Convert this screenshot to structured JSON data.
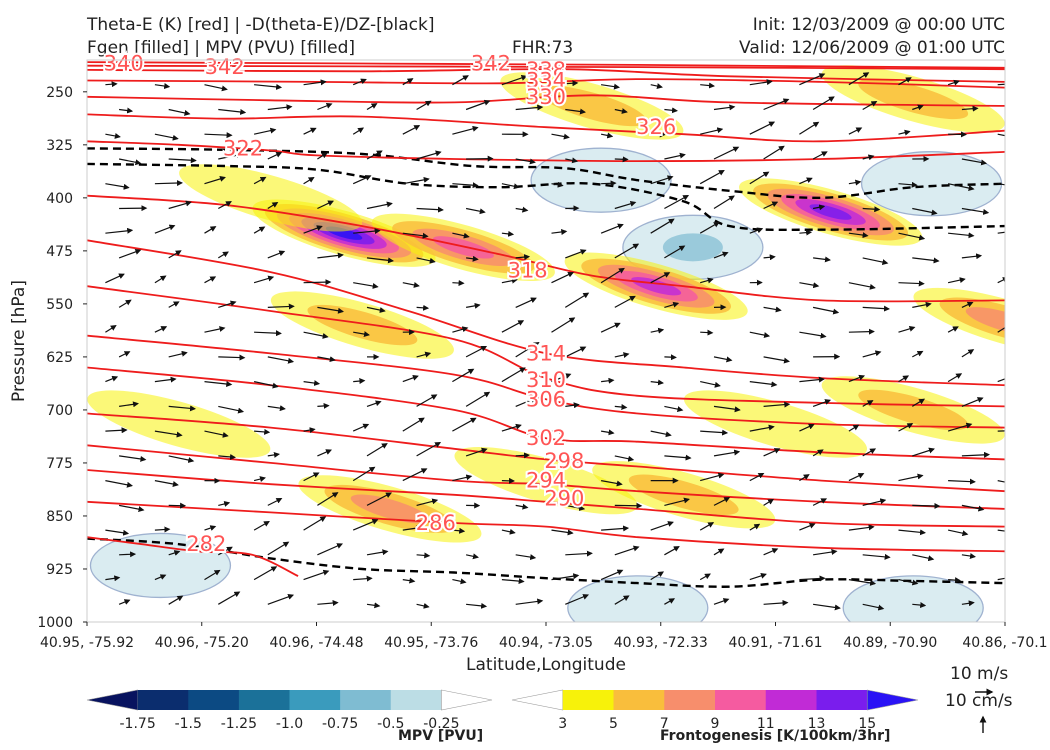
{
  "header": {
    "title_line1": "Theta-E (K) [red] | -D(theta-E)/DZ-[black]",
    "title_line2": "Fgen [filled] | MPV (PVU) [filled]",
    "fhr": "FHR:73",
    "init": "Init: 12/03/2009 @ 00:00 UTC",
    "valid": "Valid: 12/06/2009 @ 01:00 UTC"
  },
  "chart_data": {
    "type": "cross-section",
    "xlabel": "Latitude,Longitude",
    "ylabel": "Pressure [hPa]",
    "x_ticks": [
      "40.95, -75.92",
      "40.96, -75.20",
      "40.96, -74.48",
      "40.95, -73.76",
      "40.94, -73.05",
      "40.93, -72.33",
      "40.91, -71.61",
      "40.89, -70.90",
      "40.86, -70.1"
    ],
    "y_ticks": [
      250,
      325,
      400,
      475,
      550,
      625,
      700,
      775,
      850,
      925,
      1000
    ],
    "ylim": [
      205,
      1000
    ],
    "y_inverted": true,
    "theta_e_contours": [
      {
        "label": "340",
        "pts": [
          [
            0,
            208
          ],
          [
            300,
            210
          ],
          [
            600,
            212
          ],
          [
            1000,
            216
          ]
        ]
      },
      {
        "label": "342",
        "pts": [
          [
            0,
            213
          ],
          [
            300,
            214
          ],
          [
            600,
            215
          ],
          [
            1000,
            218
          ]
        ]
      },
      {
        "label": "338",
        "pts": [
          [
            0,
            219
          ],
          [
            300,
            221
          ],
          [
            520,
            218
          ],
          [
            700,
            228
          ],
          [
            1000,
            236
          ]
        ]
      },
      {
        "label": "334",
        "pts": [
          [
            0,
            234
          ],
          [
            250,
            236
          ],
          [
            450,
            238
          ],
          [
            600,
            232
          ],
          [
            800,
            236
          ],
          [
            1000,
            244
          ]
        ]
      },
      {
        "label": "330",
        "pts": [
          [
            0,
            257
          ],
          [
            200,
            262
          ],
          [
            400,
            265
          ],
          [
            550,
            255
          ],
          [
            700,
            265
          ],
          [
            1000,
            270
          ]
        ]
      },
      {
        "label": "326",
        "pts": [
          [
            0,
            282
          ],
          [
            150,
            288
          ],
          [
            300,
            285
          ],
          [
            500,
            300
          ],
          [
            650,
            310
          ],
          [
            800,
            320
          ],
          [
            1000,
            305
          ]
        ]
      },
      {
        "label": "322",
        "pts": [
          [
            0,
            320
          ],
          [
            100,
            325
          ],
          [
            200,
            333
          ],
          [
            250,
            340
          ],
          [
            400,
            345
          ],
          [
            600,
            348
          ],
          [
            800,
            345
          ],
          [
            1000,
            335
          ]
        ]
      },
      {
        "label": "318",
        "pts": [
          [
            0,
            397
          ],
          [
            150,
            410
          ],
          [
            300,
            440
          ],
          [
            450,
            480
          ],
          [
            550,
            510
          ],
          [
            650,
            525
          ],
          [
            800,
            545
          ],
          [
            1000,
            545
          ]
        ]
      },
      {
        "label": "314",
        "pts": [
          [
            0,
            460
          ],
          [
            200,
            505
          ],
          [
            350,
            560
          ],
          [
            500,
            620
          ],
          [
            650,
            640
          ],
          [
            800,
            655
          ],
          [
            1000,
            665
          ]
        ]
      },
      {
        "label": "310",
        "pts": [
          [
            0,
            525
          ],
          [
            200,
            560
          ],
          [
            400,
            600
          ],
          [
            500,
            655
          ],
          [
            600,
            680
          ],
          [
            800,
            690
          ],
          [
            1000,
            695
          ]
        ]
      },
      {
        "label": "306",
        "pts": [
          [
            0,
            595
          ],
          [
            200,
            620
          ],
          [
            400,
            650
          ],
          [
            500,
            685
          ],
          [
            600,
            705
          ],
          [
            800,
            720
          ],
          [
            1000,
            725
          ]
        ]
      },
      {
        "label": "302",
        "pts": [
          [
            0,
            640
          ],
          [
            200,
            665
          ],
          [
            400,
            700
          ],
          [
            500,
            740
          ],
          [
            600,
            745
          ],
          [
            800,
            760
          ],
          [
            1000,
            770
          ]
        ]
      },
      {
        "label": "298",
        "pts": [
          [
            0,
            705
          ],
          [
            200,
            725
          ],
          [
            400,
            755
          ],
          [
            500,
            770
          ],
          [
            600,
            780
          ],
          [
            800,
            800
          ],
          [
            1000,
            815
          ]
        ]
      },
      {
        "label": "294",
        "pts": [
          [
            0,
            750
          ],
          [
            200,
            775
          ],
          [
            400,
            800
          ],
          [
            500,
            805
          ],
          [
            600,
            815
          ],
          [
            800,
            830
          ],
          [
            1000,
            840
          ]
        ]
      },
      {
        "label": "290",
        "pts": [
          [
            0,
            785
          ],
          [
            200,
            805
          ],
          [
            400,
            820
          ],
          [
            500,
            830
          ],
          [
            600,
            840
          ],
          [
            800,
            860
          ],
          [
            1000,
            865
          ]
        ]
      },
      {
        "label": "286",
        "pts": [
          [
            0,
            830
          ],
          [
            200,
            845
          ],
          [
            400,
            860
          ],
          [
            500,
            865
          ],
          [
            600,
            880
          ],
          [
            800,
            895
          ],
          [
            1000,
            900
          ]
        ]
      },
      {
        "label": "282",
        "pts": [
          [
            0,
            880
          ],
          [
            60,
            890
          ],
          [
            120,
            900
          ],
          [
            180,
            905
          ],
          [
            230,
            935
          ]
        ]
      }
    ],
    "stability_contours": [
      {
        "pts": [
          [
            0,
            330
          ],
          [
            150,
            332
          ],
          [
            300,
            338
          ],
          [
            420,
            355
          ],
          [
            520,
            358
          ],
          [
            600,
            375
          ],
          [
            700,
            390
          ],
          [
            800,
            400
          ],
          [
            900,
            385
          ],
          [
            1000,
            380
          ]
        ]
      },
      {
        "pts": [
          [
            0,
            352
          ],
          [
            150,
            355
          ],
          [
            250,
            360
          ],
          [
            350,
            380
          ],
          [
            450,
            385
          ],
          [
            550,
            380
          ],
          [
            650,
            405
          ],
          [
            700,
            440
          ],
          [
            800,
            445
          ],
          [
            1000,
            440
          ]
        ]
      },
      {
        "pts": [
          [
            0,
            882
          ],
          [
            100,
            890
          ],
          [
            200,
            910
          ],
          [
            300,
            925
          ],
          [
            400,
            930
          ],
          [
            500,
            938
          ],
          [
            600,
            945
          ],
          [
            700,
            950
          ],
          [
            800,
            940
          ],
          [
            900,
            942
          ],
          [
            1000,
            945
          ]
        ]
      }
    ],
    "fgen_blobs": [
      {
        "x": 280,
        "p": 450,
        "value": 15
      },
      {
        "x": 410,
        "p": 470,
        "value": 9
      },
      {
        "x": 620,
        "p": 525,
        "value": 11
      },
      {
        "x": 810,
        "p": 420,
        "value": 13
      },
      {
        "x": 1000,
        "p": 575,
        "value": 7
      },
      {
        "x": 300,
        "p": 580,
        "value": 5
      },
      {
        "x": 330,
        "p": 840,
        "value": 7
      },
      {
        "x": 650,
        "p": 820,
        "value": 5
      },
      {
        "x": 900,
        "p": 700,
        "value": 5
      },
      {
        "x": 550,
        "p": 270,
        "value": 5
      },
      {
        "x": 900,
        "p": 260,
        "value": 5
      },
      {
        "x": 200,
        "p": 400,
        "value": 3
      },
      {
        "x": 100,
        "p": 720,
        "value": 3
      },
      {
        "x": 500,
        "p": 800,
        "value": 3
      },
      {
        "x": 750,
        "p": 720,
        "value": 3
      }
    ],
    "mpv_regions": [
      {
        "x": 560,
        "p": 375,
        "value": -0.25
      },
      {
        "x": 660,
        "p": 470,
        "value": -0.5
      },
      {
        "x": 920,
        "p": 380,
        "value": -0.25
      },
      {
        "x": 80,
        "p": 920,
        "value": -0.25
      },
      {
        "x": 600,
        "p": 980,
        "value": -0.25
      },
      {
        "x": 900,
        "p": 980,
        "value": -0.25
      }
    ],
    "contour_labels": [
      {
        "text": "340",
        "x": 40,
        "p": 210
      },
      {
        "text": "342",
        "x": 150,
        "p": 215
      },
      {
        "text": "342",
        "x": 440,
        "p": 210
      },
      {
        "text": "338",
        "x": 500,
        "p": 219
      },
      {
        "text": "334",
        "x": 500,
        "p": 234
      },
      {
        "text": "330",
        "x": 500,
        "p": 257
      },
      {
        "text": "326",
        "x": 620,
        "p": 300
      },
      {
        "text": "322",
        "x": 170,
        "p": 330
      },
      {
        "text": "318",
        "x": 480,
        "p": 503
      },
      {
        "text": "314",
        "x": 500,
        "p": 620
      },
      {
        "text": "310",
        "x": 500,
        "p": 658
      },
      {
        "text": "306",
        "x": 500,
        "p": 685
      },
      {
        "text": "302",
        "x": 500,
        "p": 740
      },
      {
        "text": "298",
        "x": 520,
        "p": 772
      },
      {
        "text": "294",
        "x": 500,
        "p": 800
      },
      {
        "text": "290",
        "x": 520,
        "p": 825
      },
      {
        "text": "286",
        "x": 380,
        "p": 860
      },
      {
        "text": "282",
        "x": 130,
        "p": 890
      }
    ],
    "wind_vector_scale": {
      "horizontal": "10 m/s",
      "vertical": "10 cm/s"
    },
    "colorbars": [
      {
        "name": "MPV [PVU]",
        "ticks": [
          "-1.75",
          "-1.5",
          "-1.25",
          "-1.0",
          "-0.75",
          "-0.5",
          "-0.25"
        ],
        "colors": [
          "#08135f",
          "#0b2d6e",
          "#0c4a83",
          "#1b7199",
          "#3a9bbd",
          "#7fbcd2",
          "#bcdde5",
          "#ffffff"
        ]
      },
      {
        "name": "Frontogenesis [K/100km/3hr]",
        "ticks": [
          "3",
          "5",
          "7",
          "9",
          "11",
          "13",
          "15"
        ],
        "colors": [
          "#ffffff",
          "#f7f20a",
          "#f9be3c",
          "#f78e6c",
          "#f55ba0",
          "#c12bd6",
          "#7a1ded",
          "#2a13f5"
        ]
      }
    ]
  }
}
